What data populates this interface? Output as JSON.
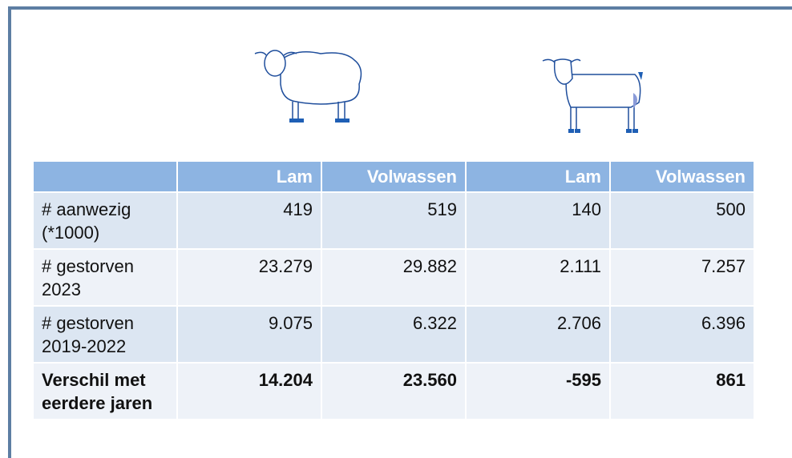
{
  "table": {
    "header": [
      "Lam",
      "Volwassen",
      "Lam",
      "Volwassen"
    ],
    "rows": [
      {
        "label": "# aanwezig (*1000)",
        "cells": [
          "419",
          "519",
          "140",
          "500"
        ]
      },
      {
        "label": "# gestorven 2023",
        "cells": [
          "23.279",
          "29.882",
          "2.111",
          "7.257"
        ]
      },
      {
        "label": "# gestorven 2019-2022",
        "cells": [
          "9.075",
          "6.322",
          "2.706",
          "6.396"
        ]
      },
      {
        "label": "Verschil met eerdere jaren",
        "cells": [
          "14.204",
          "23.560",
          "-595",
          "861"
        ],
        "bold": true
      }
    ]
  }
}
